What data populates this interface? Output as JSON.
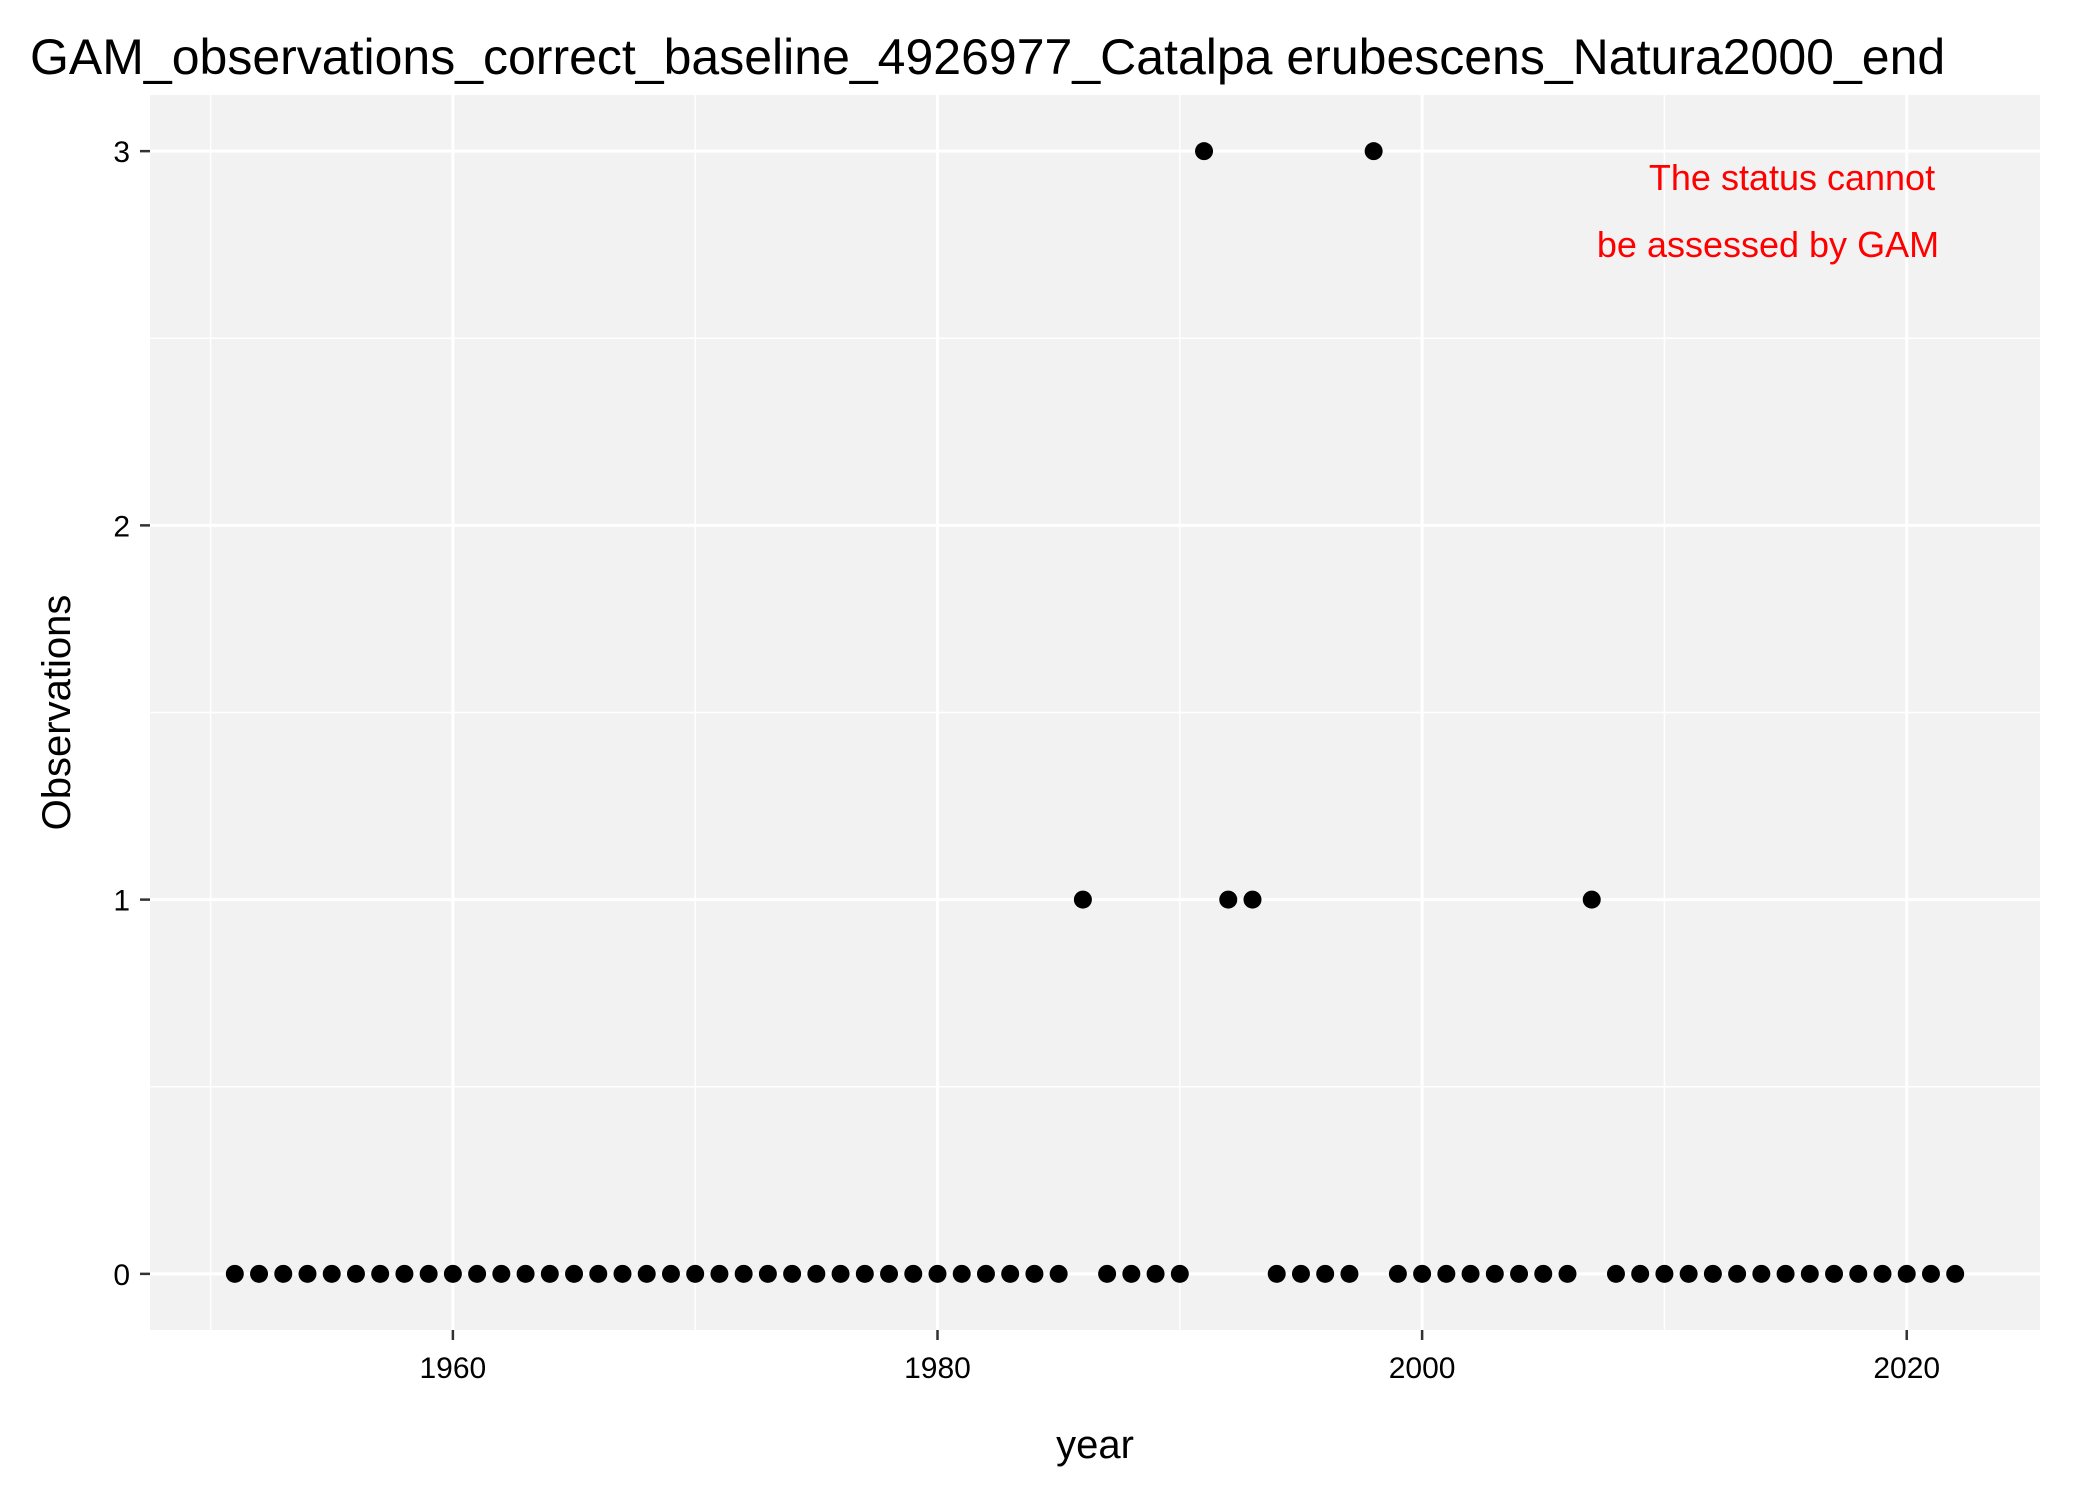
{
  "chart_data": {
    "type": "scatter",
    "title": "GAM_observations_correct_baseline_4926977_Catalpa erubescens_Natura2000_end",
    "xlabel": "year",
    "ylabel": "Observations",
    "xlim": [
      1947.5,
      2025.5
    ],
    "ylim": [
      -0.15,
      3.15
    ],
    "x_ticks": [
      1960,
      1980,
      2000,
      2020
    ],
    "x_tick_labels": [
      "1960",
      "1980",
      "2000",
      "2020"
    ],
    "x_minor_ticks": [
      1950,
      1970,
      1990,
      2010
    ],
    "y_ticks": [
      0,
      1,
      2,
      3
    ],
    "y_tick_labels": [
      "0",
      "1",
      "2",
      "3"
    ],
    "y_minor_ticks": [
      0.5,
      1.5,
      2.5
    ],
    "grid": true,
    "points": [
      {
        "x": 1951,
        "y": 0
      },
      {
        "x": 1952,
        "y": 0
      },
      {
        "x": 1953,
        "y": 0
      },
      {
        "x": 1954,
        "y": 0
      },
      {
        "x": 1955,
        "y": 0
      },
      {
        "x": 1956,
        "y": 0
      },
      {
        "x": 1957,
        "y": 0
      },
      {
        "x": 1958,
        "y": 0
      },
      {
        "x": 1959,
        "y": 0
      },
      {
        "x": 1960,
        "y": 0
      },
      {
        "x": 1961,
        "y": 0
      },
      {
        "x": 1962,
        "y": 0
      },
      {
        "x": 1963,
        "y": 0
      },
      {
        "x": 1964,
        "y": 0
      },
      {
        "x": 1965,
        "y": 0
      },
      {
        "x": 1966,
        "y": 0
      },
      {
        "x": 1967,
        "y": 0
      },
      {
        "x": 1968,
        "y": 0
      },
      {
        "x": 1969,
        "y": 0
      },
      {
        "x": 1970,
        "y": 0
      },
      {
        "x": 1971,
        "y": 0
      },
      {
        "x": 1972,
        "y": 0
      },
      {
        "x": 1973,
        "y": 0
      },
      {
        "x": 1974,
        "y": 0
      },
      {
        "x": 1975,
        "y": 0
      },
      {
        "x": 1976,
        "y": 0
      },
      {
        "x": 1977,
        "y": 0
      },
      {
        "x": 1978,
        "y": 0
      },
      {
        "x": 1979,
        "y": 0
      },
      {
        "x": 1980,
        "y": 0
      },
      {
        "x": 1981,
        "y": 0
      },
      {
        "x": 1982,
        "y": 0
      },
      {
        "x": 1983,
        "y": 0
      },
      {
        "x": 1984,
        "y": 0
      },
      {
        "x": 1985,
        "y": 0
      },
      {
        "x": 1986,
        "y": 1
      },
      {
        "x": 1987,
        "y": 0
      },
      {
        "x": 1988,
        "y": 0
      },
      {
        "x": 1989,
        "y": 0
      },
      {
        "x": 1990,
        "y": 0
      },
      {
        "x": 1991,
        "y": 3
      },
      {
        "x": 1992,
        "y": 1
      },
      {
        "x": 1993,
        "y": 1
      },
      {
        "x": 1994,
        "y": 0
      },
      {
        "x": 1995,
        "y": 0
      },
      {
        "x": 1996,
        "y": 0
      },
      {
        "x": 1997,
        "y": 0
      },
      {
        "x": 1998,
        "y": 3
      },
      {
        "x": 1999,
        "y": 0
      },
      {
        "x": 2000,
        "y": 0
      },
      {
        "x": 2001,
        "y": 0
      },
      {
        "x": 2002,
        "y": 0
      },
      {
        "x": 2003,
        "y": 0
      },
      {
        "x": 2004,
        "y": 0
      },
      {
        "x": 2005,
        "y": 0
      },
      {
        "x": 2006,
        "y": 0
      },
      {
        "x": 2007,
        "y": 1
      },
      {
        "x": 2008,
        "y": 0
      },
      {
        "x": 2009,
        "y": 0
      },
      {
        "x": 2010,
        "y": 0
      },
      {
        "x": 2011,
        "y": 0
      },
      {
        "x": 2012,
        "y": 0
      },
      {
        "x": 2013,
        "y": 0
      },
      {
        "x": 2014,
        "y": 0
      },
      {
        "x": 2015,
        "y": 0
      },
      {
        "x": 2016,
        "y": 0
      },
      {
        "x": 2017,
        "y": 0
      },
      {
        "x": 2018,
        "y": 0
      },
      {
        "x": 2019,
        "y": 0
      },
      {
        "x": 2020,
        "y": 0
      },
      {
        "x": 2021,
        "y": 0
      },
      {
        "x": 2022,
        "y": 0
      }
    ],
    "annotation": {
      "lines": [
        "The status cannot",
        "be assessed by GAM"
      ],
      "color": "#ff0000",
      "placement": "top-right"
    },
    "colors": {
      "panel_background": "#f2f2f2",
      "grid": "#ffffff",
      "point": "#000000"
    }
  }
}
